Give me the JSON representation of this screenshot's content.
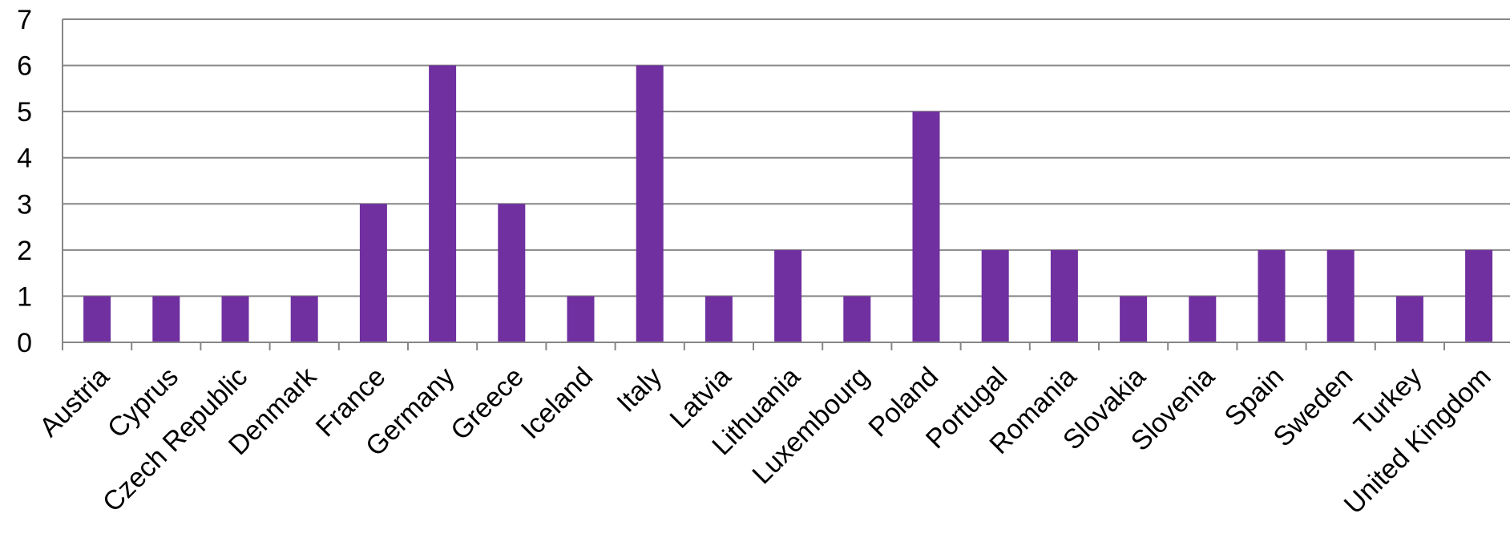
{
  "chart_data": {
    "type": "bar",
    "categories": [
      "Austria",
      "Cyprus",
      "Czech Republic",
      "Denmark",
      "France",
      "Germany",
      "Greece",
      "Iceland",
      "Italy",
      "Latvia",
      "Lithuania",
      "Luxembourg",
      "Poland",
      "Portugal",
      "Romania",
      "Slovakia",
      "Slovenia",
      "Spain",
      "Sweden",
      "Turkey",
      "United Kingdom"
    ],
    "values": [
      1,
      1,
      1,
      1,
      3,
      6,
      3,
      1,
      6,
      1,
      2,
      1,
      5,
      2,
      2,
      1,
      1,
      2,
      2,
      1,
      2
    ],
    "ylim": [
      0,
      7
    ],
    "yticks": [
      0,
      1,
      2,
      3,
      4,
      5,
      6,
      7
    ],
    "grid": true,
    "legend": "none",
    "colors": {
      "bar": "#7030A0",
      "grid": "#868686",
      "axis": "#868686"
    }
  }
}
